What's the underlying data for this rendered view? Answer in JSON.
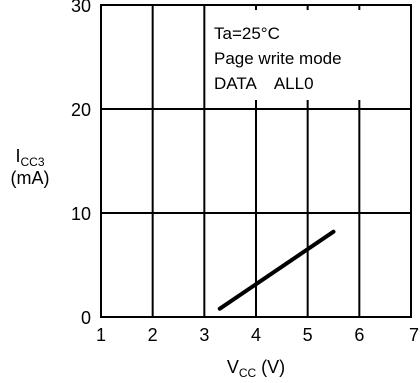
{
  "chart_data": {
    "type": "line",
    "xlabel": {
      "main": "V",
      "sub": "CC",
      "unit": "(V)"
    },
    "ylabel": {
      "main": "I",
      "sub": "CC3",
      "unit": "(mA)"
    },
    "xlim": [
      1,
      7
    ],
    "ylim": [
      0,
      30
    ],
    "x_ticks": [
      "1",
      "2",
      "3",
      "4",
      "5",
      "6",
      "7"
    ],
    "y_ticks": [
      "0",
      "10",
      "20",
      "30"
    ],
    "grid": true,
    "annotations": [
      "Ta=25°C",
      "Page write mode",
      "DATA    ALL0"
    ],
    "series": [
      {
        "x": [
          3.3,
          5.5
        ],
        "values": [
          0.8,
          8.2
        ]
      }
    ]
  }
}
